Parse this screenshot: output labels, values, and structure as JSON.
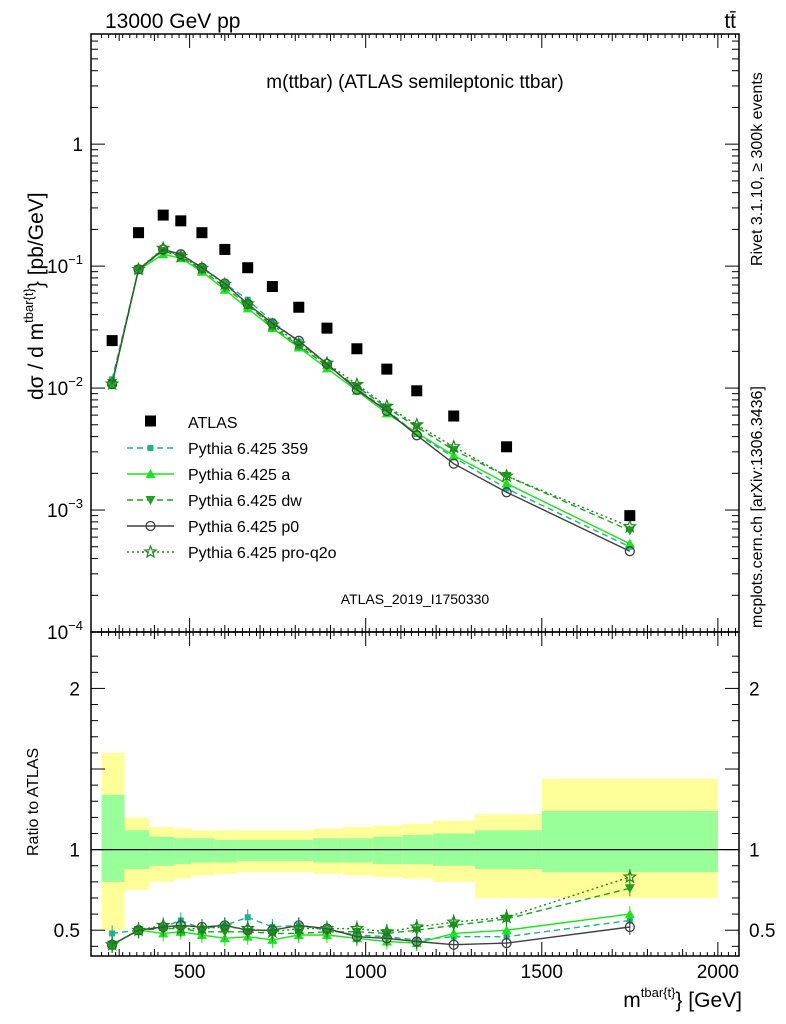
{
  "header": {
    "left": "13000 GeV pp",
    "right": "tt̄",
    "side_top": "Rivet 3.1.10, ≥ 300k events",
    "side_bottom": "mcplots.cern.ch [arXiv:1306.3436]"
  },
  "colors": {
    "atlas": "#000000",
    "p359": "#19b38c",
    "pa": "#19e619",
    "pdw": "#19a619",
    "pp0": "#404040",
    "pq2o": "#198a19",
    "band_outer": "#ffff99",
    "band_inner": "#99ff99"
  },
  "chart_data": [
    {
      "type": "scatter",
      "title": "m(ttbar) (ATLAS semileptonic ttbar)",
      "watermark": "ATLAS_2019_I1750330",
      "ylabel_main": "dσ / d m",
      "ylabel_sup": "tbar{t}",
      "ylabel_tail": "} [pb/GeV]",
      "xlabel_main": "m",
      "xlabel_sup": "tbar{t}",
      "xlabel_tail": "} [GeV]",
      "y_log": true,
      "ylim": [
        0.0001,
        8
      ],
      "y_ticklabels": [
        {
          "v": 1,
          "base": "1",
          "exp": ""
        },
        {
          "v": 0.1,
          "base": "10",
          "exp": "−1"
        },
        {
          "v": 0.01,
          "base": "10",
          "exp": "−2"
        },
        {
          "v": 0.001,
          "base": "10",
          "exp": "−3"
        },
        {
          "v": 0.0001,
          "base": "10",
          "exp": "−4"
        }
      ],
      "x": [
        280,
        355,
        425,
        475,
        535,
        600,
        665,
        735,
        810,
        890,
        975,
        1060,
        1145,
        1250,
        1400,
        1750
      ],
      "atlas": [
        0.0245,
        0.188,
        0.262,
        0.235,
        0.188,
        0.137,
        0.097,
        0.068,
        0.046,
        0.031,
        0.021,
        0.0143,
        0.0095,
        0.0059,
        0.0033,
        0.0009
      ],
      "series": [
        {
          "name": "Pythia 6.425 359",
          "key": "p359",
          "marker": "square-small",
          "dash": "6,4",
          "values": [
            0.0118,
            0.094,
            0.135,
            0.124,
            0.098,
            0.072,
            0.053,
            0.035,
            0.024,
            0.0155,
            0.0099,
            0.0066,
            0.0042,
            0.0027,
            0.0015,
            0.0005
          ]
        },
        {
          "name": "Pythia 6.425 a",
          "key": "pa",
          "marker": "triangle-up",
          "dash": "",
          "values": [
            0.011,
            0.093,
            0.125,
            0.116,
            0.09,
            0.064,
            0.045,
            0.031,
            0.0215,
            0.0145,
            0.0095,
            0.0062,
            0.0043,
            0.0028,
            0.00165,
            0.00053
          ]
        },
        {
          "name": "Pythia 6.425 dw",
          "key": "pdw",
          "marker": "triangle-down",
          "dash": "6,4",
          "values": [
            0.011,
            0.094,
            0.133,
            0.12,
            0.093,
            0.067,
            0.048,
            0.032,
            0.0222,
            0.0152,
            0.0103,
            0.0069,
            0.0048,
            0.0031,
            0.0019,
            0.00068
          ]
        },
        {
          "name": "Pythia 6.425 p0",
          "key": "pp0",
          "marker": "circle-open",
          "dash": "",
          "values": [
            0.0108,
            0.094,
            0.137,
            0.125,
            0.097,
            0.072,
            0.049,
            0.034,
            0.0244,
            0.0158,
            0.0097,
            0.0065,
            0.0041,
            0.0024,
            0.0014,
            0.00046
          ]
        },
        {
          "name": "Pythia 6.425 pro-q2o",
          "key": "pq2o",
          "marker": "star-open",
          "dash": "2,3",
          "values": [
            0.0108,
            0.094,
            0.14,
            0.12,
            0.096,
            0.071,
            0.049,
            0.033,
            0.023,
            0.016,
            0.0107,
            0.0071,
            0.005,
            0.0033,
            0.0019,
            0.00073
          ]
        }
      ],
      "legend_label_atlas": "ATLAS",
      "legend_position": "lower-left"
    },
    {
      "type": "scatter",
      "ylabel": "Ratio to ATLAS",
      "ylim": [
        0.34,
        2.35
      ],
      "y_ticks": [
        0.5,
        1,
        2
      ],
      "y_ticklabels": [
        "0.5",
        "1",
        "2"
      ],
      "xlim": [
        220,
        2060
      ],
      "x_ticks": [
        500,
        1000,
        1500,
        2000
      ],
      "x_ticklabels": [
        "500",
        "1000",
        "1500",
        "2000"
      ],
      "bin_edges": [
        250,
        315,
        385,
        455,
        505,
        570,
        635,
        700,
        775,
        850,
        935,
        1020,
        1105,
        1190,
        1310,
        1500,
        2000
      ],
      "band_outer": [
        [
          0.5,
          1.6
        ],
        [
          0.75,
          1.2
        ],
        [
          0.8,
          1.14
        ],
        [
          0.82,
          1.13
        ],
        [
          0.84,
          1.12
        ],
        [
          0.85,
          1.12
        ],
        [
          0.86,
          1.12
        ],
        [
          0.86,
          1.12
        ],
        [
          0.86,
          1.12
        ],
        [
          0.85,
          1.13
        ],
        [
          0.84,
          1.14
        ],
        [
          0.83,
          1.15
        ],
        [
          0.82,
          1.16
        ],
        [
          0.8,
          1.18
        ],
        [
          0.7,
          1.22
        ],
        [
          0.7,
          1.44
        ]
      ],
      "band_inner": [
        [
          0.8,
          1.34
        ],
        [
          0.88,
          1.12
        ],
        [
          0.9,
          1.08
        ],
        [
          0.91,
          1.07
        ],
        [
          0.92,
          1.07
        ],
        [
          0.92,
          1.06
        ],
        [
          0.93,
          1.06
        ],
        [
          0.93,
          1.06
        ],
        [
          0.93,
          1.06
        ],
        [
          0.92,
          1.07
        ],
        [
          0.92,
          1.07
        ],
        [
          0.91,
          1.08
        ],
        [
          0.91,
          1.09
        ],
        [
          0.9,
          1.1
        ],
        [
          0.88,
          1.12
        ],
        [
          0.86,
          1.24
        ]
      ],
      "series": [
        {
          "key": "p359",
          "values": [
            0.48,
            0.5,
            0.52,
            0.56,
            0.51,
            0.53,
            0.58,
            0.52,
            0.53,
            0.5,
            0.47,
            0.46,
            0.44,
            0.46,
            0.46,
            0.56
          ]
        },
        {
          "key": "pa",
          "values": [
            0.41,
            0.5,
            0.48,
            0.49,
            0.47,
            0.45,
            0.46,
            0.44,
            0.47,
            0.47,
            0.45,
            0.43,
            0.42,
            0.48,
            0.5,
            0.6
          ]
        },
        {
          "key": "pdw",
          "values": [
            0.41,
            0.5,
            0.51,
            0.51,
            0.49,
            0.49,
            0.49,
            0.48,
            0.48,
            0.49,
            0.49,
            0.48,
            0.5,
            0.53,
            0.57,
            0.76
          ]
        },
        {
          "key": "pp0",
          "values": [
            0.41,
            0.5,
            0.52,
            0.53,
            0.52,
            0.53,
            0.5,
            0.5,
            0.53,
            0.51,
            0.46,
            0.45,
            0.43,
            0.41,
            0.42,
            0.52
          ]
        },
        {
          "key": "pq2o",
          "values": [
            0.41,
            0.5,
            0.53,
            0.51,
            0.51,
            0.52,
            0.51,
            0.49,
            0.51,
            0.51,
            0.51,
            0.49,
            0.52,
            0.55,
            0.58,
            0.83
          ]
        }
      ]
    }
  ]
}
